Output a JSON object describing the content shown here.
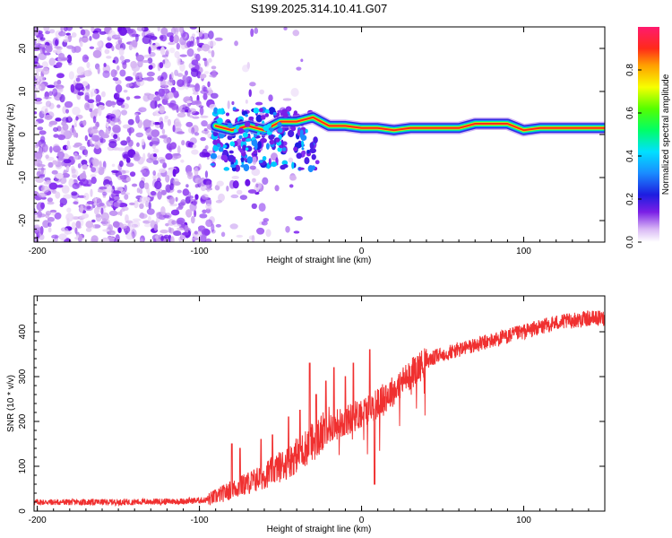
{
  "title": "S199.2025.314.10.41.G07",
  "chart_data": [
    {
      "type": "heatmap",
      "panel": "top",
      "xlabel": "Height of straight line (km)",
      "ylabel": "Frequency (Hz)",
      "xlim": [
        -202,
        150
      ],
      "ylim": [
        -25,
        25
      ],
      "xticks": [
        -200,
        -100,
        0,
        100
      ],
      "yticks": [
        -20,
        -10,
        0,
        10,
        20
      ],
      "colorbar": {
        "label": "Normalized spectral amplitude",
        "range": [
          0,
          1
        ],
        "ticks": [
          0.0,
          0.2,
          0.4,
          0.6,
          0.8
        ]
      },
      "ridge": [
        {
          "x": -90,
          "y": 2
        },
        {
          "x": -80,
          "y": 1
        },
        {
          "x": -70,
          "y": 2
        },
        {
          "x": -60,
          "y": 1
        },
        {
          "x": -50,
          "y": 3
        },
        {
          "x": -40,
          "y": 3
        },
        {
          "x": -30,
          "y": 4
        },
        {
          "x": -25,
          "y": 3
        },
        {
          "x": -20,
          "y": 2
        },
        {
          "x": -10,
          "y": 2
        },
        {
          "x": 0,
          "y": 1.5
        },
        {
          "x": 10,
          "y": 1.5
        },
        {
          "x": 20,
          "y": 1
        },
        {
          "x": 30,
          "y": 1.5
        },
        {
          "x": 40,
          "y": 1.5
        },
        {
          "x": 50,
          "y": 1.5
        },
        {
          "x": 60,
          "y": 1.5
        },
        {
          "x": 70,
          "y": 2.5
        },
        {
          "x": 80,
          "y": 2.5
        },
        {
          "x": 90,
          "y": 2.5
        },
        {
          "x": 100,
          "y": 1
        },
        {
          "x": 110,
          "y": 1.5
        },
        {
          "x": 120,
          "y": 1.5
        },
        {
          "x": 130,
          "y": 1.5
        },
        {
          "x": 140,
          "y": 1.5
        },
        {
          "x": 150,
          "y": 1.5
        }
      ]
    },
    {
      "type": "line",
      "panel": "bottom",
      "xlabel": "Height of straight line (km)",
      "ylabel": "SNR (10 * v/v)",
      "xlim": [
        -202,
        150
      ],
      "ylim": [
        0,
        480
      ],
      "xticks": [
        -200,
        -100,
        0,
        100
      ],
      "yticks": [
        0,
        100,
        200,
        300,
        400
      ],
      "series": [
        {
          "name": "SNR",
          "color": "#f03030",
          "x": [
            -202,
            -150,
            -110,
            -95,
            -85,
            -75,
            -65,
            -55,
            -45,
            -35,
            -25,
            -18,
            -10,
            -5,
            0,
            5,
            10,
            20,
            30,
            40,
            50,
            60,
            70,
            80,
            90,
            100,
            110,
            120,
            130,
            140,
            150
          ],
          "values": [
            20,
            20,
            22,
            25,
            40,
            55,
            70,
            90,
            110,
            140,
            170,
            190,
            200,
            210,
            220,
            230,
            240,
            270,
            305,
            335,
            350,
            360,
            370,
            380,
            390,
            400,
            410,
            420,
            425,
            430,
            430
          ]
        }
      ],
      "spikes": [
        {
          "x": -80,
          "y": 150
        },
        {
          "x": -75,
          "y": 140
        },
        {
          "x": -62,
          "y": 160
        },
        {
          "x": -55,
          "y": 170
        },
        {
          "x": -45,
          "y": 210
        },
        {
          "x": -38,
          "y": 225
        },
        {
          "x": -32,
          "y": 330
        },
        {
          "x": -28,
          "y": 260
        },
        {
          "x": -22,
          "y": 290
        },
        {
          "x": -17,
          "y": 320
        },
        {
          "x": -10,
          "y": 300
        },
        {
          "x": -5,
          "y": 330
        },
        {
          "x": 5,
          "y": 360
        },
        {
          "x": 8,
          "y": 60
        },
        {
          "x": 15,
          "y": 280
        }
      ]
    }
  ]
}
